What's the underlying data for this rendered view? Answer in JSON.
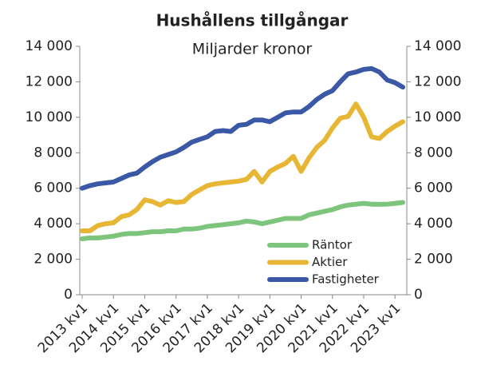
{
  "chart_data": {
    "type": "line",
    "title": "Hushållens tillgångar",
    "subtitle": "Miljarder kronor",
    "categories": [
      "2013 kv1",
      null,
      null,
      null,
      "2014 kv1",
      null,
      null,
      null,
      "2015 kv1",
      null,
      null,
      null,
      "2016 kv1",
      null,
      null,
      null,
      "2017 kv1",
      null,
      null,
      null,
      "2018 kv1",
      null,
      null,
      null,
      "2019 kv1",
      null,
      null,
      null,
      "2020 kv1",
      null,
      null,
      null,
      "2021 kv1",
      null,
      null,
      null,
      "2022 kv1",
      null,
      null,
      null,
      "2023 kv1",
      null
    ],
    "series": [
      {
        "name": "Räntor",
        "color": "#7dc47c",
        "values": [
          3150,
          3200,
          3200,
          3250,
          3300,
          3400,
          3450,
          3450,
          3500,
          3550,
          3550,
          3600,
          3600,
          3700,
          3700,
          3750,
          3850,
          3900,
          3950,
          4000,
          4050,
          4150,
          4100,
          4000,
          4100,
          4200,
          4300,
          4300,
          4300,
          4500,
          4600,
          4700,
          4800,
          4950,
          5050,
          5100,
          5150,
          5100,
          5100,
          5100,
          5150,
          5200
        ]
      },
      {
        "name": "Aktier",
        "color": "#e6b634",
        "values": [
          3600,
          3600,
          3900,
          4000,
          4050,
          4400,
          4500,
          4800,
          5350,
          5250,
          5050,
          5300,
          5200,
          5250,
          5650,
          5900,
          6150,
          6250,
          6300,
          6350,
          6400,
          6500,
          6950,
          6350,
          6950,
          7200,
          7400,
          7800,
          6950,
          7700,
          8300,
          8700,
          9400,
          9950,
          10050,
          10750,
          10000,
          8900,
          8800,
          9200,
          9500,
          9750
        ]
      },
      {
        "name": "Fastigheter",
        "color": "#3a58a6",
        "values": [
          6000,
          6150,
          6250,
          6300,
          6350,
          6550,
          6750,
          6850,
          7200,
          7500,
          7750,
          7900,
          8050,
          8300,
          8600,
          8750,
          8900,
          9200,
          9250,
          9200,
          9550,
          9600,
          9850,
          9850,
          9750,
          10000,
          10250,
          10300,
          10300,
          10600,
          11000,
          11300,
          11500,
          12000,
          12450,
          12550,
          12700,
          12750,
          12550,
          12100,
          11950,
          11700
        ]
      }
    ],
    "ylim": [
      0,
      14000
    ],
    "yticks": [
      0,
      {
        "value": 2000,
        "label": "2 000"
      },
      {
        "value": 4000,
        "label": "4 000"
      },
      {
        "value": 6000,
        "label": "6 000"
      },
      {
        "value": 8000,
        "label": "8 000"
      },
      {
        "value": 10000,
        "label": "10 000"
      },
      {
        "value": 12000,
        "label": "12 000"
      },
      {
        "value": 14000,
        "label": "14 000"
      }
    ],
    "y2lim": [
      0,
      14000
    ],
    "y2ticks": [
      0,
      {
        "value": 2000,
        "label": "2 000"
      },
      {
        "value": 4000,
        "label": "4 000"
      },
      {
        "value": 6000,
        "label": "6 000"
      },
      {
        "value": 8000,
        "label": "8 000"
      },
      {
        "value": 10000,
        "label": "10 000"
      },
      {
        "value": 12000,
        "label": "12 000"
      },
      {
        "value": 14000,
        "label": "14 000"
      }
    ],
    "grid": false,
    "legend": "lower right"
  }
}
